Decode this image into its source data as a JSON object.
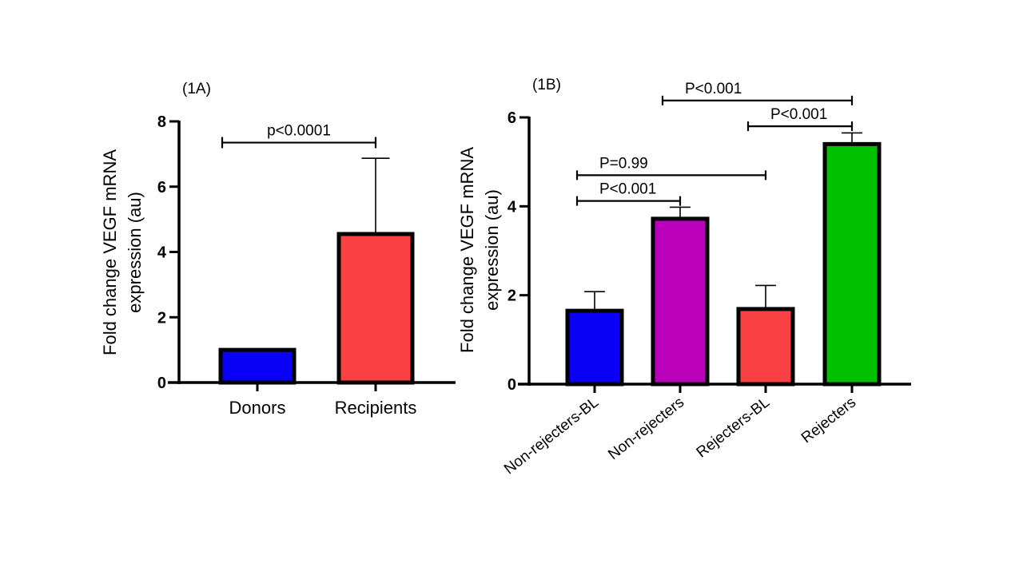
{
  "chart_data": [
    {
      "type": "bar",
      "panel_label": "(1A)",
      "title": "",
      "xlabel": "",
      "ylabel_line1": "Fold change VEGF mRNA",
      "ylabel_line2": "expression (au)",
      "ylim": [
        0,
        8
      ],
      "yticks": [
        "0",
        "2",
        "4",
        "6",
        "8"
      ],
      "ytick_values": [
        0,
        2,
        4,
        6,
        8
      ],
      "categories": [
        "Donors",
        "Recipients"
      ],
      "values": [
        1.0,
        4.55
      ],
      "error_upper": [
        1.0,
        6.87
      ],
      "colors": [
        "#0a00f5",
        "#f94144"
      ],
      "significance": [
        {
          "from": 0,
          "to": 1,
          "y": 7.35,
          "label": "p<0.0001"
        }
      ],
      "grid": false,
      "legend": "none"
    },
    {
      "type": "bar",
      "panel_label": "(1B)",
      "title": "",
      "xlabel": "",
      "ylabel_line1": "Fold change VEGF mRNA",
      "ylabel_line2": "expression (au)",
      "ylim": [
        0,
        6
      ],
      "yticks": [
        "0",
        "2",
        "4",
        "6"
      ],
      "ytick_values": [
        0,
        2,
        4,
        6
      ],
      "categories": [
        "Non-rejecters-BL",
        "Non-rejecters",
        "Rejecters-BL",
        "Rejecters"
      ],
      "values": [
        1.65,
        3.72,
        1.69,
        5.4
      ],
      "error_upper": [
        2.08,
        3.98,
        2.22,
        5.65
      ],
      "colors": [
        "#0a00f5",
        "#bb00bb",
        "#f94144",
        "#00c000"
      ],
      "significance": [
        {
          "from": 0,
          "to": 1,
          "y": 4.12,
          "label": "P<0.001"
        },
        {
          "from": 0,
          "to": 2,
          "y": 4.7,
          "label": "P=0.99"
        },
        {
          "from": 2,
          "to": 3,
          "y": 5.8,
          "label": "P<0.001"
        },
        {
          "from": 1,
          "to": 3,
          "y": 6.38,
          "label": "P<0.001"
        }
      ],
      "grid": false,
      "legend": "none"
    }
  ]
}
